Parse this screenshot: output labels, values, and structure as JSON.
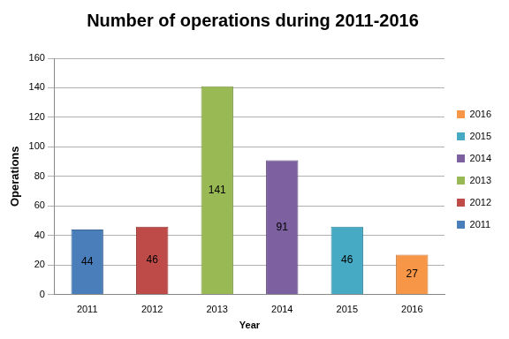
{
  "chart_data": {
    "type": "bar",
    "title": "Number of operations during 2011-2016",
    "x_label": "Year",
    "y_label": "Operations",
    "categories": [
      "2011",
      "2012",
      "2013",
      "2014",
      "2015",
      "2016"
    ],
    "values": [
      44,
      46,
      141,
      91,
      46,
      27
    ],
    "colors": [
      "#4a7ebb",
      "#be4b48",
      "#98b954",
      "#7d60a0",
      "#46aac5",
      "#f79646"
    ],
    "ylim": [
      0,
      160
    ],
    "yticks": [
      0,
      20,
      40,
      60,
      80,
      100,
      120,
      140,
      160
    ],
    "grid": true,
    "legend": "right",
    "data_labels": true
  }
}
